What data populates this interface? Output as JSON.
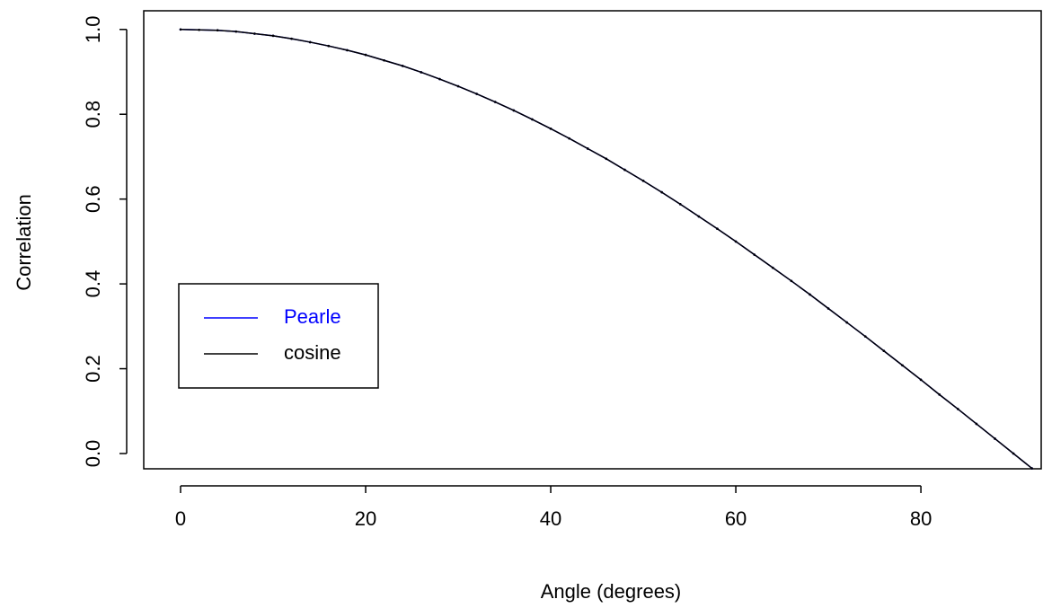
{
  "chart_data": {
    "type": "line",
    "x_label": "Angle (degrees)",
    "y_label": "Correlation",
    "x": [
      0,
      2,
      4,
      6,
      8,
      10,
      12,
      14,
      16,
      18,
      20,
      22,
      24,
      26,
      28,
      30,
      32,
      34,
      36,
      38,
      40,
      42,
      44,
      46,
      48,
      50,
      52,
      54,
      56,
      58,
      60,
      62,
      64,
      66,
      68,
      70,
      72,
      74,
      76,
      78,
      80,
      82,
      84,
      86,
      88,
      90,
      92
    ],
    "series": [
      {
        "name": "Pearle",
        "color": "#0000ff",
        "values": [
          1,
          0.999,
          0.998,
          0.995,
          0.99,
          0.985,
          0.978,
          0.97,
          0.961,
          0.951,
          0.94,
          0.927,
          0.914,
          0.899,
          0.883,
          0.866,
          0.848,
          0.829,
          0.809,
          0.788,
          0.766,
          0.743,
          0.719,
          0.695,
          0.669,
          0.643,
          0.616,
          0.588,
          0.559,
          0.53,
          0.5,
          0.469,
          0.438,
          0.407,
          0.375,
          0.342,
          0.309,
          0.276,
          0.242,
          0.208,
          0.174,
          0.139,
          0.105,
          0.07,
          0.035,
          0.0,
          -0.035
        ]
      },
      {
        "name": "cosine",
        "color": "#000000",
        "values": [
          1,
          0.999,
          0.998,
          0.995,
          0.99,
          0.985,
          0.978,
          0.97,
          0.961,
          0.951,
          0.94,
          0.927,
          0.914,
          0.899,
          0.883,
          0.866,
          0.848,
          0.829,
          0.809,
          0.788,
          0.766,
          0.743,
          0.719,
          0.695,
          0.669,
          0.643,
          0.616,
          0.588,
          0.559,
          0.53,
          0.5,
          0.469,
          0.438,
          0.407,
          0.375,
          0.342,
          0.309,
          0.276,
          0.242,
          0.208,
          0.174,
          0.139,
          0.105,
          0.07,
          0.035,
          0.0,
          -0.035
        ]
      }
    ],
    "xlim": [
      -3.98,
      93.0
    ],
    "ylim": [
      -0.036,
      1.044
    ],
    "xticks": [
      0,
      20,
      40,
      60,
      80
    ],
    "yticks": [
      {
        "value": 0,
        "label": "0.0"
      },
      0.2,
      0.4,
      0.6,
      0.8,
      {
        "value": 1,
        "label": "1.0"
      }
    ],
    "legend_position": "left",
    "grid": false
  }
}
